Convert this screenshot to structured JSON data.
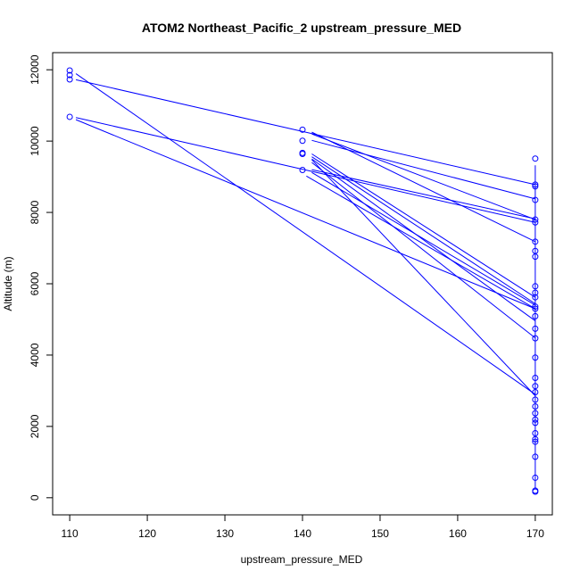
{
  "chart_data": {
    "type": "scatter",
    "title": "ATOM2 Northeast_Pacific_2 upstream_pressure_MED",
    "xlabel": "upstream_pressure_MED",
    "ylabel": "Altitude (m)",
    "xlim": [
      107.8,
      172.2
    ],
    "ylim": [
      -480,
      12480
    ],
    "x_ticks": [
      110,
      120,
      130,
      140,
      150,
      160,
      170
    ],
    "y_ticks": [
      0,
      2000,
      4000,
      6000,
      8000,
      10000,
      12000
    ],
    "grid": false,
    "series_color": "#0000ff",
    "points": [
      {
        "x": 110,
        "y": 11980
      },
      {
        "x": 110,
        "y": 11850
      },
      {
        "x": 110,
        "y": 11730
      },
      {
        "x": 110,
        "y": 10680
      },
      {
        "x": 140,
        "y": 10320
      },
      {
        "x": 140,
        "y": 10010
      },
      {
        "x": 140,
        "y": 9670
      },
      {
        "x": 140,
        "y": 9640
      },
      {
        "x": 140,
        "y": 9190
      },
      {
        "x": 170,
        "y": 9510
      },
      {
        "x": 170,
        "y": 8780
      },
      {
        "x": 170,
        "y": 8730
      },
      {
        "x": 170,
        "y": 8350
      },
      {
        "x": 170,
        "y": 7800
      },
      {
        "x": 170,
        "y": 7720
      },
      {
        "x": 170,
        "y": 7180
      },
      {
        "x": 170,
        "y": 6920
      },
      {
        "x": 170,
        "y": 6760
      },
      {
        "x": 170,
        "y": 5930
      },
      {
        "x": 170,
        "y": 5750
      },
      {
        "x": 170,
        "y": 5620
      },
      {
        "x": 170,
        "y": 5360
      },
      {
        "x": 170,
        "y": 5300
      },
      {
        "x": 170,
        "y": 5090
      },
      {
        "x": 170,
        "y": 4740
      },
      {
        "x": 170,
        "y": 4470
      },
      {
        "x": 170,
        "y": 3930
      },
      {
        "x": 170,
        "y": 3360
      },
      {
        "x": 170,
        "y": 3130
      },
      {
        "x": 170,
        "y": 2960
      },
      {
        "x": 170,
        "y": 2750
      },
      {
        "x": 170,
        "y": 2560
      },
      {
        "x": 170,
        "y": 2370
      },
      {
        "x": 170,
        "y": 2190
      },
      {
        "x": 170,
        "y": 2100
      },
      {
        "x": 170,
        "y": 1810
      },
      {
        "x": 170,
        "y": 1640
      },
      {
        "x": 170,
        "y": 1570
      },
      {
        "x": 170,
        "y": 1150
      },
      {
        "x": 170,
        "y": 560
      },
      {
        "x": 170,
        "y": 200
      },
      {
        "x": 170,
        "y": 170
      }
    ],
    "lines": [
      [
        [
          110.8,
          11890
        ],
        [
          170,
          2900
        ]
      ],
      [
        [
          110.8,
          11720
        ],
        [
          170,
          8780
        ]
      ],
      [
        [
          110.8,
          10660
        ],
        [
          170,
          7720
        ]
      ],
      [
        [
          110.8,
          10600
        ],
        [
          170,
          5300
        ]
      ],
      [
        [
          141.2,
          10250
        ],
        [
          170,
          7180
        ]
      ],
      [
        [
          141.2,
          10200
        ],
        [
          170,
          7800
        ]
      ],
      [
        [
          141.2,
          10020
        ],
        [
          170,
          8380
        ]
      ],
      [
        [
          141.2,
          9640
        ],
        [
          170,
          5620
        ]
      ],
      [
        [
          141.2,
          9560
        ],
        [
          170,
          5440
        ]
      ],
      [
        [
          141.2,
          9500
        ],
        [
          170,
          4960
        ]
      ],
      [
        [
          141.2,
          9480
        ],
        [
          170,
          2860
        ]
      ],
      [
        [
          141.2,
          9400
        ],
        [
          170,
          4480
        ]
      ],
      [
        [
          141.2,
          9200
        ],
        [
          170,
          7820
        ]
      ],
      [
        [
          141.2,
          9120
        ],
        [
          170,
          5400
        ]
      ],
      [
        [
          140.5,
          9020
        ],
        [
          170,
          5300
        ]
      ],
      [
        [
          170,
          9320
        ],
        [
          170,
          230
        ]
      ]
    ]
  }
}
